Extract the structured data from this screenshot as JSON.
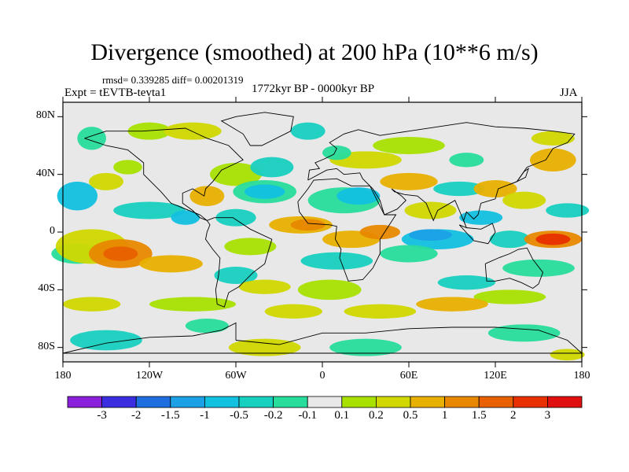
{
  "title": "Divergence (smoothed) at 200 hPa (10**6 m/s)",
  "stats": "rmsd= 0.339285  diff= 0.00201319",
  "experiment": "Expt = tEVTB-tevta1",
  "period": "1772kyr BP - 0000kyr BP",
  "season": "JJA",
  "chart_data": {
    "type": "heatmap",
    "title": "Divergence (smoothed) at 200 hPa (10**6 m/s)",
    "variable": "Divergence difference (smoothed)",
    "units": "10**6 m/s",
    "level": "200 hPa",
    "x_ticks": [
      {
        "value": -180,
        "label": "180"
      },
      {
        "value": -120,
        "label": "120W"
      },
      {
        "value": -60,
        "label": "60W"
      },
      {
        "value": 0,
        "label": "0"
      },
      {
        "value": 60,
        "label": "60E"
      },
      {
        "value": 120,
        "label": "120E"
      },
      {
        "value": 180,
        "label": "180"
      }
    ],
    "y_ticks": [
      {
        "value": 80,
        "label": "80N"
      },
      {
        "value": 40,
        "label": "40N"
      },
      {
        "value": 0,
        "label": "0"
      },
      {
        "value": -40,
        "label": "40S"
      },
      {
        "value": -80,
        "label": "80S"
      }
    ],
    "xlim": [
      -180,
      180
    ],
    "ylim": [
      -90,
      90
    ],
    "colorbar": {
      "labels": [
        "-3",
        "-2",
        "-1.5",
        "-1",
        "-0.5",
        "-0.2",
        "-0.1",
        "0.1",
        "0.2",
        "0.5",
        "1",
        "1.5",
        "2",
        "3"
      ],
      "colors": [
        "#8a1fdc",
        "#3a2ee0",
        "#1f6ee0",
        "#1ca0e6",
        "#12c0e0",
        "#18d0c0",
        "#28dc9c",
        "#e8e8e8",
        "#a8e000",
        "#d0d800",
        "#e8b000",
        "#e88800",
        "#e86000",
        "#e83000",
        "#e01010"
      ]
    },
    "features": [
      {
        "lon": -140,
        "lat": -15,
        "value": 1.5,
        "sign": "positive",
        "note": "central South Pacific maximum"
      },
      {
        "lon": 160,
        "lat": -5,
        "value": 2.0,
        "sign": "positive",
        "note": "western Pacific maximum"
      },
      {
        "lon": -10,
        "lat": 5,
        "value": 1.0,
        "sign": "positive",
        "note": "equatorial Atlantic"
      },
      {
        "lon": 20,
        "lat": 25,
        "value": -1.0,
        "sign": "negative",
        "note": "North Africa"
      },
      {
        "lon": -40,
        "lat": 25,
        "value": -1.0,
        "sign": "negative",
        "note": "subtropical North Atlantic"
      },
      {
        "lon": 80,
        "lat": -5,
        "value": -1.0,
        "sign": "negative",
        "note": "equatorial Indian Ocean"
      },
      {
        "lon": -120,
        "lat": 10,
        "value": -0.5,
        "sign": "negative",
        "note": "eastern tropical Pacific"
      },
      {
        "lon": -80,
        "lat": 25,
        "value": 0.5,
        "sign": "positive",
        "note": "Gulf of Mexico"
      }
    ],
    "background_value": "between -0.1 and 0.1 (light gray)"
  }
}
